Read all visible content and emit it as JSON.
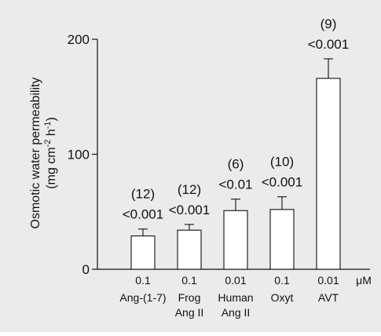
{
  "colors": {
    "background": "#ebebeb",
    "bar_fill": "#ffffff",
    "ink": "#111111"
  },
  "chart_data": {
    "type": "bar",
    "ylabel_line1": "Osmotic water permeability",
    "ylabel_line2_main": "(mg cm",
    "ylabel_sup1": "-2",
    "ylabel_mid": " h",
    "ylabel_sup2": "-1",
    "ylabel_end": ")",
    "ylim": [
      0,
      200
    ],
    "yticks": [
      {
        "value": 0,
        "label": "0"
      },
      {
        "value": 100,
        "label": "100"
      },
      {
        "value": 200,
        "label": "200"
      }
    ],
    "unit_label": "μM",
    "bars": [
      {
        "dose": "0.1",
        "name_lines": [
          "Ang-(1-7)"
        ],
        "value": 29,
        "error": 6,
        "n_label": "(12)",
        "p_label": "<0.001"
      },
      {
        "dose": "0.1",
        "name_lines": [
          "Frog",
          "Ang II"
        ],
        "value": 34,
        "error": 5,
        "n_label": "(12)",
        "p_label": "<0.001"
      },
      {
        "dose": "0.01",
        "name_lines": [
          "Human",
          "Ang II"
        ],
        "value": 51,
        "error": 10,
        "n_label": "(6)",
        "p_label": "<0.01"
      },
      {
        "dose": "0.1",
        "name_lines": [
          "Oxyt"
        ],
        "value": 52,
        "error": 11,
        "n_label": "(10)",
        "p_label": "<0.001"
      },
      {
        "dose": "0.01",
        "name_lines": [
          "AVT"
        ],
        "value": 166,
        "error": 17,
        "n_label": "(9)",
        "p_label": "<0.001"
      }
    ]
  }
}
